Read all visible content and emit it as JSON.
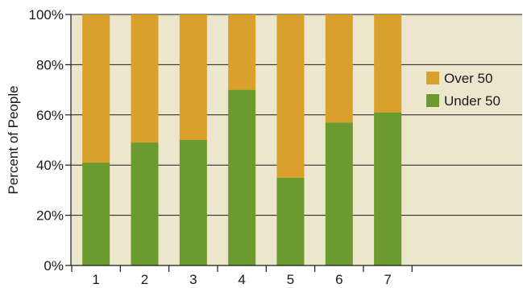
{
  "chart_data": {
    "type": "bar",
    "stacked": true,
    "title": "",
    "xlabel": "",
    "ylabel": "Percent of People",
    "ylim": [
      0,
      100
    ],
    "ytick_labels": [
      "0%",
      "20%",
      "40%",
      "60%",
      "80%",
      "100%"
    ],
    "categories": [
      "1",
      "2",
      "3",
      "4",
      "5",
      "6",
      "7"
    ],
    "series": [
      {
        "name": "Under 50",
        "color": "#6b9a2f",
        "values": [
          41,
          49,
          50,
          70,
          35,
          57,
          61
        ]
      },
      {
        "name": "Over 50",
        "color": "#d9a12b",
        "values": [
          59,
          51,
          50,
          30,
          65,
          43,
          39
        ]
      }
    ],
    "legend_position": "right",
    "grid": "horizontal",
    "plot_background": "#ece6cc"
  }
}
